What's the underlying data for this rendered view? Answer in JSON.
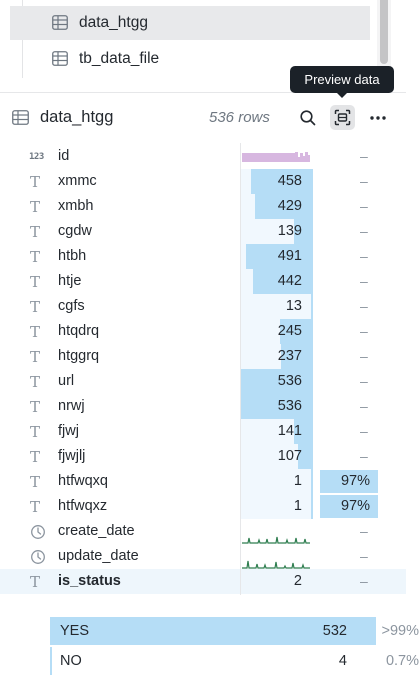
{
  "tree": {
    "items": [
      {
        "label": "data_htgg",
        "selected": true
      },
      {
        "label": "tb_data_file",
        "selected": false
      }
    ]
  },
  "tooltip": {
    "text": "Preview data"
  },
  "header": {
    "title": "data_htgg",
    "rows_label": "536 rows",
    "icons": [
      "table-icon",
      "search-icon",
      "preview-data-icon",
      "more-icon"
    ]
  },
  "columns": [
    {
      "name": "id",
      "type": "number",
      "count": "",
      "fill": 0,
      "pct": "–"
    },
    {
      "name": "xmmc",
      "type": "text",
      "count": "458",
      "fill": 0.854,
      "pct": "–"
    },
    {
      "name": "xmbh",
      "type": "text",
      "count": "429",
      "fill": 0.8,
      "pct": "–"
    },
    {
      "name": "cgdw",
      "type": "text",
      "count": "139",
      "fill": 0.26,
      "pct": "–"
    },
    {
      "name": "htbh",
      "type": "text",
      "count": "491",
      "fill": 0.916,
      "pct": "–"
    },
    {
      "name": "htje",
      "type": "text",
      "count": "442",
      "fill": 0.825,
      "pct": "–"
    },
    {
      "name": "cgfs",
      "type": "text",
      "count": "13",
      "fill": 0.024,
      "pct": "–"
    },
    {
      "name": "htqdrq",
      "type": "text",
      "count": "245",
      "fill": 0.457,
      "pct": "–"
    },
    {
      "name": "htggrq",
      "type": "text",
      "count": "237",
      "fill": 0.442,
      "pct": "–"
    },
    {
      "name": "url",
      "type": "text",
      "count": "536",
      "fill": 1.0,
      "pct": "–"
    },
    {
      "name": "nrwj",
      "type": "text",
      "count": "536",
      "fill": 1.0,
      "pct": "–"
    },
    {
      "name": "fjwj",
      "type": "text",
      "count": "141",
      "fill": 0.263,
      "pct": "–"
    },
    {
      "name": "fjwjlj",
      "type": "text",
      "count": "107",
      "fill": 0.2,
      "pct": "–"
    },
    {
      "name": "htfwqxq",
      "type": "text",
      "count": "1",
      "fill": 0.002,
      "pct": "97%"
    },
    {
      "name": "htfwqxz",
      "type": "text",
      "count": "1",
      "fill": 0.002,
      "pct": "97%"
    },
    {
      "name": "create_date",
      "type": "date",
      "count": "",
      "fill": 0,
      "pct": "–"
    },
    {
      "name": "update_date",
      "type": "date",
      "count": "",
      "fill": 0,
      "pct": "–"
    },
    {
      "name": "is_status",
      "type": "text",
      "count": "2",
      "fill": 0,
      "pct": "–",
      "highlight": true
    }
  ],
  "values": [
    {
      "label": "YES",
      "count": "532",
      "pct": ">99%",
      "fill": 0.993
    },
    {
      "label": "NO",
      "count": "4",
      "pct": "0.7%",
      "fill": 0.007
    }
  ],
  "colors": {
    "bar": "#b5ddf6",
    "bar_bg": "#f1f8fe",
    "histogram": "#d7b7e0",
    "sparkline": "#2e7d4f"
  }
}
